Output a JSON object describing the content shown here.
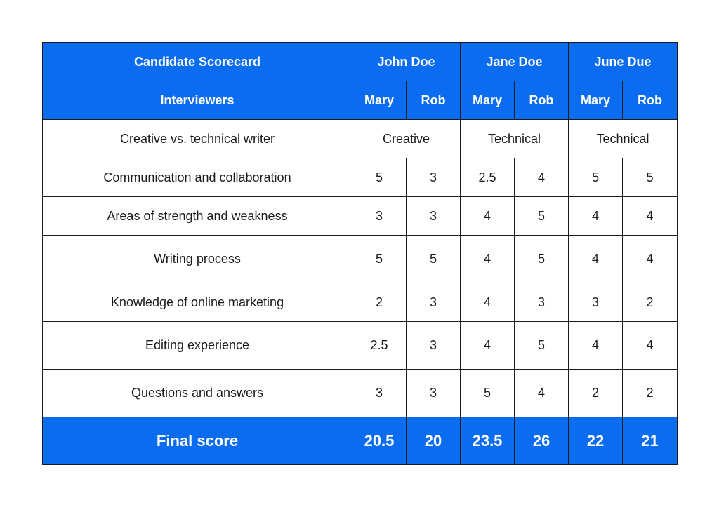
{
  "scorecard": {
    "title": "Candidate Scorecard",
    "interviewers_label": "Interviewers",
    "candidates": [
      {
        "name": "John Doe",
        "type": "Creative"
      },
      {
        "name": "Jane Doe",
        "type": "Technical"
      },
      {
        "name": "June Due",
        "type": "Technical"
      }
    ],
    "interviewers": [
      "Mary",
      "Rob",
      "Mary",
      "Rob",
      "Mary",
      "Rob"
    ],
    "type_row_label": "Creative vs. technical writer",
    "rows": [
      {
        "label": "Communication and collaboration",
        "scores": [
          "5",
          "3",
          "2.5",
          "4",
          "5",
          "5"
        ]
      },
      {
        "label": "Areas of strength and weakness",
        "scores": [
          "3",
          "3",
          "4",
          "5",
          "4",
          "4"
        ]
      },
      {
        "label": "Writing process",
        "scores": [
          "5",
          "5",
          "4",
          "5",
          "4",
          "4"
        ]
      },
      {
        "label": "Knowledge of online marketing",
        "scores": [
          "2",
          "3",
          "4",
          "3",
          "3",
          "2"
        ]
      },
      {
        "label": "Editing experience",
        "scores": [
          "2.5",
          "3",
          "4",
          "5",
          "4",
          "4"
        ]
      },
      {
        "label": "Questions and answers",
        "scores": [
          "3",
          "3",
          "5",
          "4",
          "2",
          "2"
        ]
      }
    ],
    "final": {
      "label": "Final score",
      "scores": [
        "20.5",
        "20",
        "23.5",
        "26",
        "22",
        "21"
      ]
    }
  },
  "colors": {
    "header_bg": "#0a6cf1",
    "header_text": "#ffffff",
    "border": "#1a1a1a"
  }
}
